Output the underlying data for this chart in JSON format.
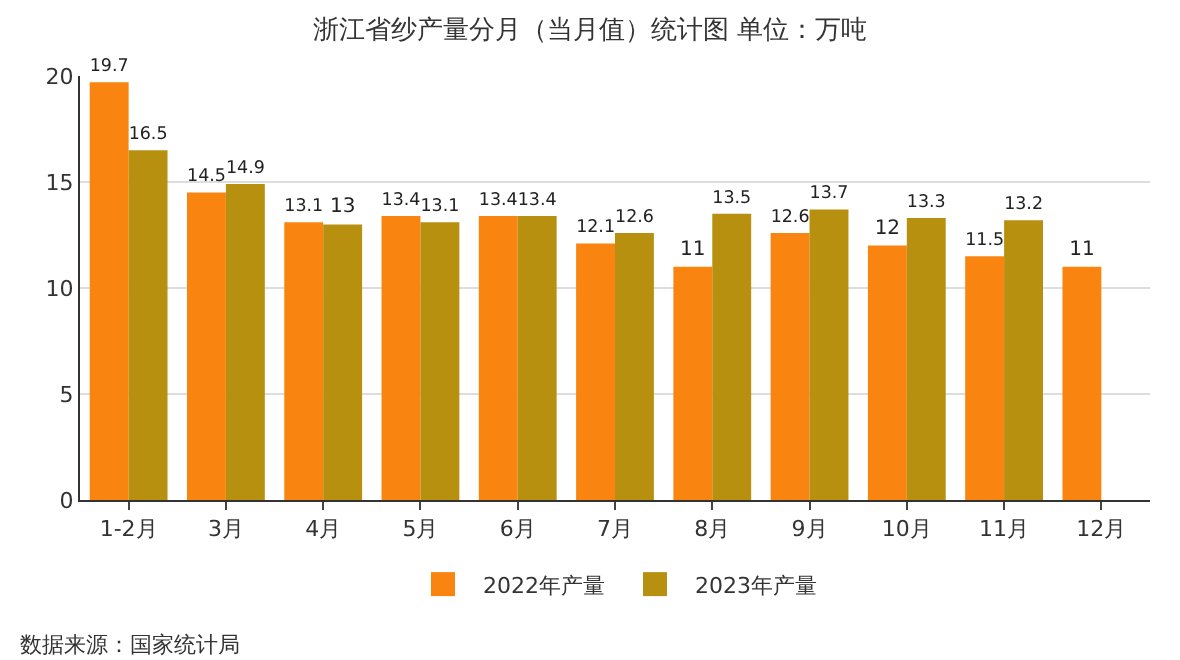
{
  "chart_data": {
    "type": "bar",
    "title": "浙江省纱产量分月（当月值）统计图 单位：万吨",
    "categories": [
      "1-2月",
      "3月",
      "4月",
      "5月",
      "6月",
      "7月",
      "8月",
      "9月",
      "10月",
      "11月",
      "12月"
    ],
    "series": [
      {
        "name": "2022年产量",
        "color": "#f98510",
        "values": [
          19.7,
          14.5,
          13.1,
          13.4,
          13.4,
          12.1,
          11,
          12.6,
          12,
          11.5,
          11
        ]
      },
      {
        "name": "2023年产量",
        "color": "#b8900f",
        "values": [
          16.5,
          14.9,
          13,
          13.1,
          13.4,
          12.6,
          13.5,
          13.7,
          13.3,
          13.2,
          null
        ]
      }
    ],
    "ylim": [
      0,
      20
    ],
    "yticks": [
      0,
      5,
      10,
      15,
      20
    ],
    "grid": "y",
    "legend": "bottom",
    "data_labels": true,
    "annotations": [
      "数据来源：国家统计局"
    ]
  }
}
